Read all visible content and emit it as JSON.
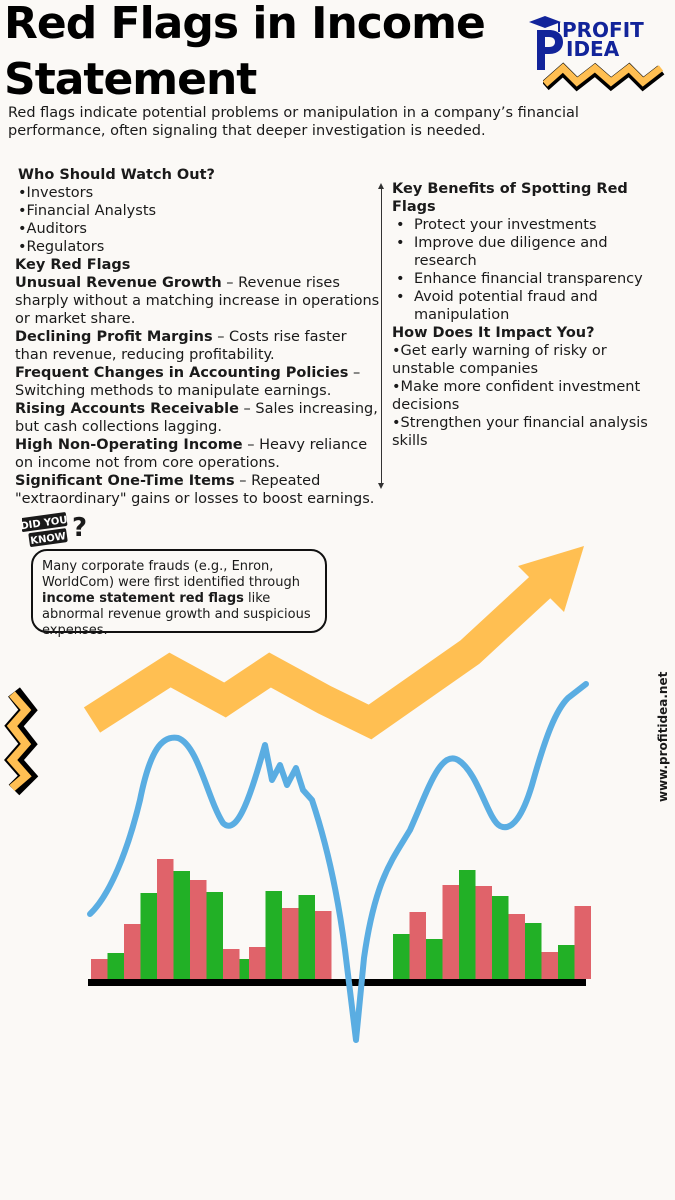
{
  "title": {
    "line1": "Red Flags in Income",
    "line2": "Statement"
  },
  "brand": {
    "line1": "PROFIT",
    "line2": "IDEA",
    "logo_letter": "P",
    "website": "www.profitidea.net"
  },
  "intro": "Red flags indicate potential problems or manipulation in a company’s financial performance, often signaling that deeper investigation is needed.",
  "who": {
    "heading": "Who Should Watch Out?",
    "items": [
      "•Investors",
      "•Financial Analysts",
      "•Auditors",
      "•Regulators"
    ]
  },
  "key_red_flags": {
    "heading": "Key Red Flags",
    "items": [
      {
        "term": "Unusual Revenue Growth",
        "desc": " – Revenue rises sharply without a matching increase in operations or market share."
      },
      {
        "term": "Declining Profit Margins",
        "desc": " – Costs rise faster than revenue, reducing profitability."
      },
      {
        "term": "Frequent Changes in Accounting Policies",
        "desc": " – Switching methods to manipulate earnings."
      },
      {
        "term": "Rising Accounts Receivable",
        "desc": " – Sales increasing, but cash collections lagging."
      },
      {
        "term": "High Non-Operating Income",
        "desc": " – Heavy reliance on income not from core operations."
      },
      {
        "term": "Significant One-Time Items",
        "desc": " – Repeated \"extraordinary\" gains or losses to boost earnings."
      }
    ]
  },
  "benefits": {
    "heading": "Key Benefits of Spotting Red Flags",
    "items": [
      "Protect your investments",
      "Improve due diligence and research",
      "Enhance financial transparency",
      "Avoid potential fraud and manipulation"
    ]
  },
  "impact": {
    "heading": "How Does It Impact You?",
    "items": [
      "•Get early warning of risky or unstable companies",
      "•Make more confident investment decisions",
      "•Strengthen your financial analysis skills"
    ]
  },
  "did_you_know": {
    "badge_line1": "DID YOU",
    "badge_line2": "KNOW",
    "badge_mark": "?",
    "text_before": "Many corporate frauds (e.g., Enron, WorldCom) were first identified through ",
    "text_bold": "income statement red flags",
    "text_after": " like abnormal revenue growth and suspicious expenses."
  },
  "colors": {
    "navy": "#12249a",
    "yellow": "#ffbf52",
    "blue": "#5aade2",
    "green": "#22b026",
    "red": "#e0636a",
    "black": "#000000"
  },
  "bars": [
    {
      "c": "red",
      "v": 20
    },
    {
      "c": "green",
      "v": 26
    },
    {
      "c": "red",
      "v": 55
    },
    {
      "c": "green",
      "v": 86
    },
    {
      "c": "red",
      "v": 120
    },
    {
      "c": "green",
      "v": 108
    },
    {
      "c": "red",
      "v": 99
    },
    {
      "c": "green",
      "v": 87
    },
    {
      "c": "red",
      "v": 30
    },
    {
      "c": "green",
      "v": 20
    },
    {
      "c": "red",
      "v": 32
    },
    {
      "c": "green",
      "v": 88
    },
    {
      "c": "red",
      "v": 71
    },
    {
      "c": "green",
      "v": 84
    },
    {
      "c": "red",
      "v": 68
    },
    {
      "c": "green",
      "v": 45
    },
    {
      "c": "red",
      "v": 67
    },
    {
      "c": "green",
      "v": 40
    },
    {
      "c": "red",
      "v": 94
    },
    {
      "c": "green",
      "v": 109
    },
    {
      "c": "red",
      "v": 93
    },
    {
      "c": "green",
      "v": 83
    },
    {
      "c": "red",
      "v": 65
    },
    {
      "c": "green",
      "v": 56
    },
    {
      "c": "red",
      "v": 27
    },
    {
      "c": "green",
      "v": 34
    },
    {
      "c": "red",
      "v": 73
    }
  ]
}
